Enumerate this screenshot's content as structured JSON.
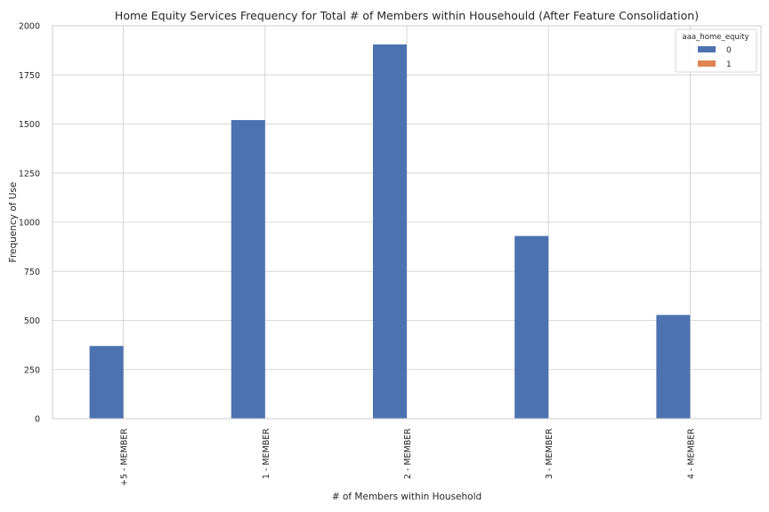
{
  "chart_data": {
    "type": "bar",
    "title": "Home Equity Services Frequency for Total # of Members within Househould (After Feature Consolidation)",
    "xlabel": "# of Members within Household",
    "ylabel": "Frequency of Use",
    "categories": [
      "+5 - MEMBER",
      "1 - MEMBER",
      "2 - MEMBER",
      "3 - MEMBER",
      "4 - MEMBER"
    ],
    "series": [
      {
        "name": "0",
        "values": [
          370,
          1520,
          1905,
          930,
          528
        ],
        "color": "#4c72b0"
      },
      {
        "name": "1",
        "values": [
          0,
          0,
          0,
          0,
          0
        ],
        "color": "#dd8452"
      }
    ],
    "ylim": [
      0,
      2000
    ],
    "yticks": [
      0,
      250,
      500,
      750,
      1000,
      1250,
      1500,
      1750,
      2000
    ],
    "grid": true,
    "legend": {
      "title": "aaa_home_equity",
      "placement": "top-right"
    }
  }
}
